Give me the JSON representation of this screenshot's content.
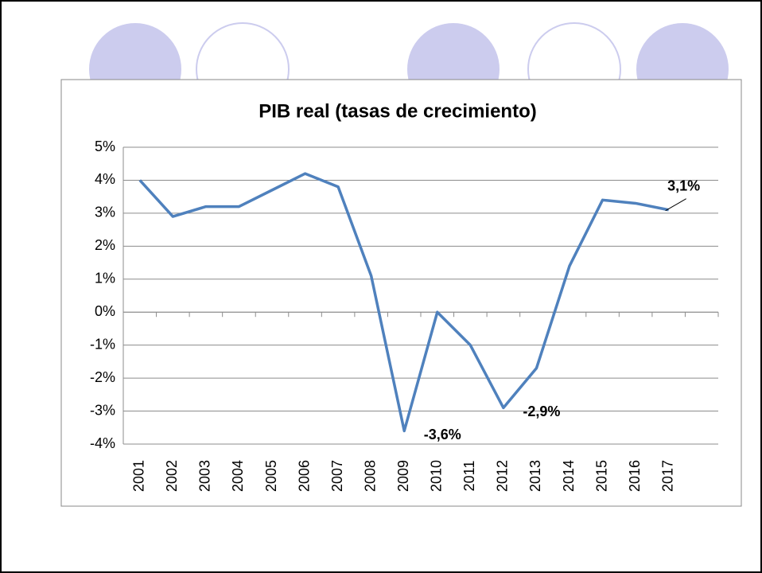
{
  "chart_data": {
    "type": "line",
    "title": "PIB real (tasas de crecimiento)",
    "categories": [
      "2001",
      "2002",
      "2003",
      "2004",
      "2005",
      "2006",
      "2007",
      "2008",
      "2009",
      "2010",
      "2011",
      "2012",
      "2013",
      "2014",
      "2015",
      "2016",
      "2017",
      null
    ],
    "series": [
      {
        "name": "PIB real",
        "color": "#4f81bd",
        "values": [
          4.0,
          2.9,
          3.2,
          3.2,
          3.7,
          4.2,
          3.8,
          1.1,
          -3.6,
          0.0,
          -1.0,
          -2.9,
          -1.7,
          1.4,
          3.4,
          3.3,
          3.1,
          null
        ],
        "value_labels": [
          null,
          null,
          null,
          null,
          null,
          null,
          null,
          null,
          "-3,6%",
          null,
          null,
          "-2,9%",
          null,
          null,
          null,
          null,
          "3,1%",
          null
        ]
      }
    ],
    "ylim": [
      -4,
      5
    ],
    "yticks": [
      {
        "value": -4,
        "label": "-4%"
      },
      {
        "value": -3,
        "label": "-3%"
      },
      {
        "value": -2,
        "label": "-2%"
      },
      {
        "value": -1,
        "label": "-1%"
      },
      {
        "value": 0,
        "label": "0%"
      },
      {
        "value": 1,
        "label": "1%"
      },
      {
        "value": 2,
        "label": "2%"
      },
      {
        "value": 3,
        "label": "3%"
      },
      {
        "value": 4,
        "label": "4%"
      },
      {
        "value": 5,
        "label": "5%"
      }
    ],
    "grid": true
  }
}
